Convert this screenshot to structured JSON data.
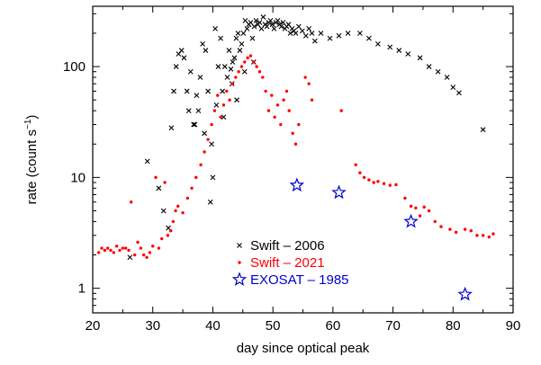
{
  "chart_data": {
    "type": "scatter",
    "title": "",
    "xlabel": "day since optical peak",
    "ylabel": "rate (count s",
    "ylabel_sup": "−1",
    "ylabel_end": ")",
    "xlim": [
      20,
      90
    ],
    "ylim": [
      0.6,
      350
    ],
    "yscale": "log",
    "grid": false,
    "legend_position": "bottom-center",
    "xticks": [
      20,
      30,
      40,
      50,
      60,
      70,
      80,
      90
    ],
    "xtick_labels": [
      "20",
      "30",
      "40",
      "50",
      "60",
      "70",
      "80",
      "90"
    ],
    "yticks": [
      1,
      10,
      100
    ],
    "ytick_labels": [
      "1",
      "10",
      "100"
    ],
    "series": [
      {
        "name": "Swift – 2006",
        "color": "#000000",
        "marker": "cross",
        "x": [
          26.2,
          29.1,
          32.6,
          33.1,
          33.5,
          33.9,
          34.3,
          34.8,
          35.2,
          35.7,
          36.3,
          36.8,
          37.3,
          37.6,
          37.9,
          38.3,
          38.8,
          39.2,
          39.6,
          40.0,
          40.4,
          40.9,
          41.3,
          41.6,
          42.0,
          42.4,
          42.7,
          43.0,
          43.3,
          43.6,
          43.9,
          44.2,
          44.5,
          44.8,
          45.1,
          45.4,
          45.7,
          46.0,
          46.3,
          46.6,
          46.9,
          47.2,
          47.5,
          47.8,
          48.1,
          48.4,
          48.7,
          49.0,
          49.3,
          49.6,
          49.9,
          50.2,
          50.5,
          50.8,
          51.1,
          51.4,
          51.7,
          52.0,
          52.3,
          52.6,
          52.9,
          53.2,
          53.5,
          53.8,
          54.3,
          54.9,
          55.5,
          56.0,
          56.5,
          57.0,
          58.0,
          59.5,
          61.0,
          62.5,
          64.5,
          66.0,
          67.5,
          69.5,
          71.0,
          72.5,
          74.5,
          76.0,
          77.5,
          79.0,
          80.0,
          81.0,
          85.0,
          31.0,
          31.8,
          36.0,
          37.0,
          38.6,
          39.8,
          40.6,
          41.8,
          43.2,
          44.0,
          45.3,
          46.8
        ],
        "values": [
          1.9,
          14,
          3.5,
          28,
          60,
          100,
          130,
          140,
          120,
          60,
          90,
          30,
          55,
          40,
          80,
          160,
          140,
          60,
          6,
          10,
          220,
          100,
          180,
          60,
          100,
          80,
          140,
          95,
          110,
          120,
          180,
          200,
          140,
          160,
          200,
          260,
          220,
          240,
          250,
          180,
          230,
          260,
          240,
          250,
          220,
          280,
          240,
          230,
          250,
          260,
          240,
          220,
          250,
          260,
          240,
          230,
          250,
          220,
          230,
          240,
          200,
          220,
          210,
          200,
          230,
          210,
          190,
          220,
          200,
          170,
          200,
          180,
          190,
          200,
          200,
          180,
          160,
          150,
          140,
          130,
          120,
          100,
          90,
          80,
          65,
          58,
          27,
          8,
          5,
          40,
          30,
          25,
          20,
          45,
          35,
          70,
          50,
          90,
          110
        ]
      },
      {
        "name": "Swift – 2021",
        "color": "#ff0000",
        "marker": "dot",
        "x": [
          21.0,
          21.5,
          22.0,
          22.5,
          23.0,
          23.5,
          24.0,
          24.5,
          25.0,
          25.5,
          26.0,
          26.4,
          27.0,
          27.5,
          28.0,
          28.5,
          29.0,
          29.5,
          30.0,
          30.5,
          31.0,
          31.5,
          32.0,
          32.5,
          33.0,
          33.4,
          33.8,
          34.2,
          35.0,
          35.8,
          36.5,
          37.2,
          38.0,
          38.6,
          39.2,
          39.8,
          40.3,
          40.8,
          41.3,
          41.8,
          42.3,
          42.8,
          43.3,
          43.8,
          44.3,
          44.8,
          45.3,
          45.8,
          46.3,
          46.8,
          47.3,
          47.8,
          48.3,
          48.8,
          49.3,
          49.8,
          50.3,
          50.8,
          51.3,
          51.8,
          52.3,
          52.7,
          53.3,
          53.8,
          54.3,
          55.4,
          56.0,
          56.5,
          61.4,
          63.8,
          64.5,
          65.2,
          66.0,
          66.8,
          67.5,
          68.5,
          69.5,
          70.5,
          72.0,
          73.0,
          73.8,
          74.5,
          75.2,
          76.0,
          77.0,
          78.0,
          79.5,
          80.5,
          82.0,
          83.0,
          84.0,
          85.0,
          86.0,
          86.7
        ],
        "values": [
          2.1,
          2.3,
          2.2,
          2.3,
          2.2,
          2.1,
          2.4,
          2.2,
          2.3,
          2.3,
          2.2,
          6,
          2.0,
          2.6,
          2.3,
          2.0,
          1.9,
          2.1,
          2.4,
          10,
          2.3,
          2.8,
          9,
          3.0,
          3.3,
          4.0,
          5.0,
          5.5,
          4.8,
          6.5,
          8,
          10,
          13,
          17,
          22,
          30,
          40,
          55,
          35,
          45,
          60,
          50,
          70,
          80,
          90,
          100,
          110,
          120,
          125,
          110,
          100,
          90,
          80,
          60,
          40,
          55,
          35,
          45,
          30,
          50,
          60,
          40,
          25,
          20,
          30,
          80,
          70,
          50,
          40,
          13,
          11,
          10,
          9.5,
          9,
          9.2,
          8.8,
          8.5,
          8.6,
          6.5,
          5.5,
          5.3,
          4.5,
          5.4,
          5.0,
          4.0,
          3.6,
          3.4,
          3.2,
          3.4,
          3.3,
          3.0,
          3.0,
          2.9,
          3.1
        ]
      },
      {
        "name": "EXOSAT – 1985",
        "color": "#0000cc",
        "marker": "star",
        "x": [
          54.0,
          61.0,
          73.0,
          82.0
        ],
        "values": [
          8.5,
          7.3,
          4.0,
          0.88
        ]
      }
    ]
  }
}
